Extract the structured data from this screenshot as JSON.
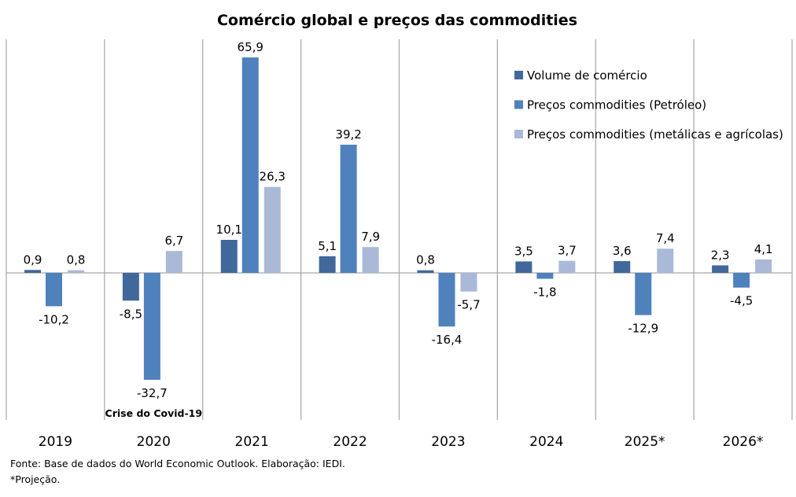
{
  "chart_data": {
    "type": "bar",
    "title": "Comércio global e preços das commodities",
    "xlabel": "",
    "ylabel": "",
    "categories": [
      "2019",
      "2020",
      "2021",
      "2022",
      "2023",
      "2024",
      "2025*",
      "2026*"
    ],
    "series": [
      {
        "name": "Volume de comércio",
        "color": "#41689B",
        "values": [
          0.9,
          -8.5,
          10.1,
          5.1,
          0.8,
          3.5,
          3.6,
          2.3
        ],
        "labels": [
          "0,9",
          "-8,5",
          "10,1",
          "5,1",
          "0,8",
          "3,5",
          "3,6",
          "2,3"
        ]
      },
      {
        "name": "Preços commodities (Petróleo)",
        "color": "#4F81BD",
        "values": [
          -10.2,
          -32.7,
          65.9,
          39.2,
          -16.4,
          -1.8,
          -12.9,
          -4.5
        ],
        "labels": [
          "-10,2",
          "-32,7",
          "65,9",
          "39,2",
          "-16,4",
          "-1,8",
          "-12,9",
          "-4,5"
        ]
      },
      {
        "name": "Preços commodities (metálicas e agrícolas)",
        "color": "#AAB9D7",
        "values": [
          0.8,
          6.7,
          26.3,
          7.9,
          -5.7,
          3.7,
          7.4,
          4.1
        ],
        "labels": [
          "0,8",
          "6,7",
          "26,3",
          "7,9",
          "-5,7",
          "3,7",
          "7,4",
          "4,1"
        ]
      }
    ],
    "ylim": [
      -45,
      66
    ],
    "grid": "vertical category separators",
    "legend": "top-right",
    "annotations": [
      {
        "category": "2020",
        "text": "Crise do Covid-19"
      }
    ]
  },
  "footer": {
    "source": "Fonte: Base de dados do World Economic Outlook. Elaboração: IEDI.",
    "note": "*Projeção."
  }
}
